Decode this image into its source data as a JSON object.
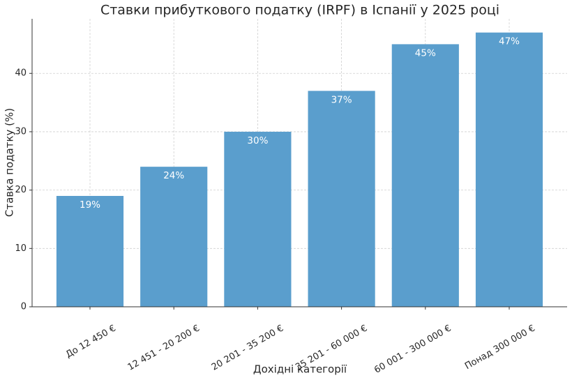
{
  "chart_data": {
    "type": "bar",
    "title": "Ставки прибуткового податку (IRPF) в Іспанії у 2025 році",
    "xlabel": "Дохідні категорії",
    "ylabel": "Ставка податку (%)",
    "categories": [
      "До 12 450 €",
      "12 451 - 20 200 €",
      "20 201 - 35 200 €",
      "35 201 - 60 000 €",
      "60 001 - 300 000 €",
      "Понад 300 000 €"
    ],
    "values": [
      19,
      24,
      30,
      37,
      45,
      47
    ],
    "value_labels": [
      "19%",
      "24%",
      "30%",
      "37%",
      "45%",
      "47%"
    ],
    "color": "#5a9ecd",
    "ylim": [
      0,
      49.35
    ],
    "yticks": [
      0,
      10,
      20,
      30,
      40
    ],
    "grid": true
  }
}
